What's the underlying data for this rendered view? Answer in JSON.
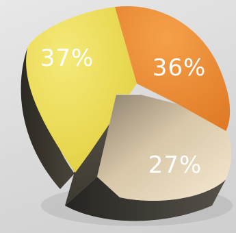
{
  "chart_data": {
    "type": "pie",
    "title": "",
    "slices": [
      {
        "label": "37%",
        "value": 37,
        "color": "#f0e256"
      },
      {
        "label": "36%",
        "value": 36,
        "color": "#ee8f3c"
      },
      {
        "label": "27%",
        "value": 27,
        "color": "#f1e1c2"
      }
    ],
    "style": "3d-exploded",
    "exploded_slice": "27%"
  }
}
